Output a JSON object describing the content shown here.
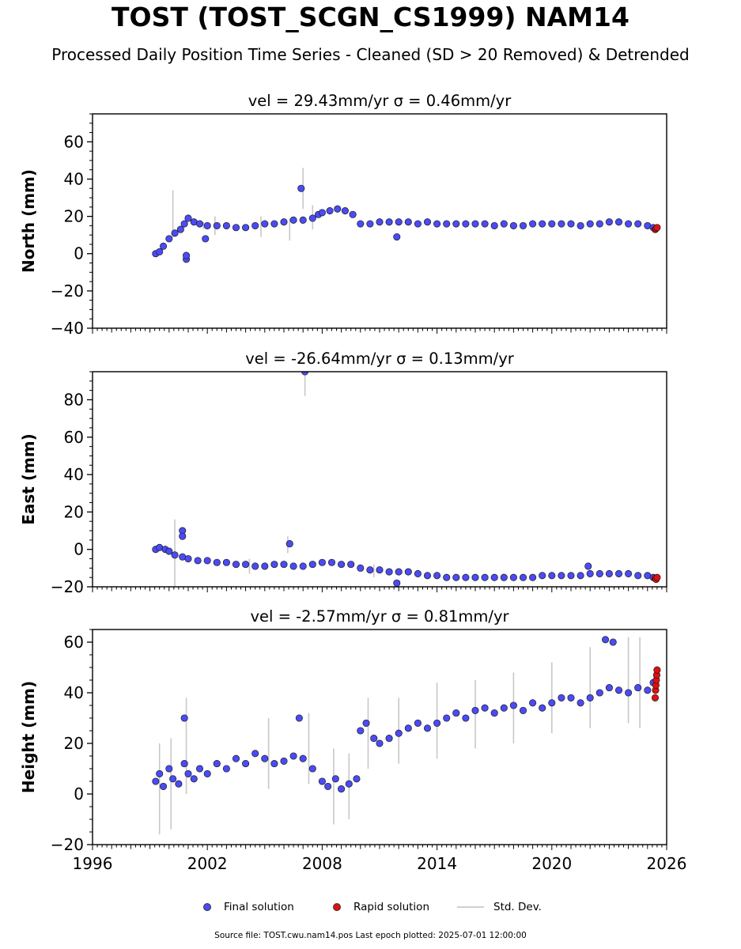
{
  "title": "TOST (TOST_SCGN_CS1999) NAM14",
  "subtitle": "Processed Daily Position Time Series - Cleaned (SD > 20 Removed) & Detrended",
  "legend": {
    "final": "Final solution",
    "rapid": "Rapid solution",
    "std": "Std. Dev."
  },
  "footer": "Source file: TOST.cwu.nam14.pos  Last epoch plotted: 2025-07-01 12:00:00",
  "colors": {
    "final": "#4b4bf5",
    "rapid": "#e01010",
    "std": "#c8c8c8",
    "edge": "#1a1a1a"
  },
  "chart_data": [
    {
      "type": "scatter",
      "panel_title": "vel = 29.43mm/yr   σ = 0.46mm/yr",
      "ylabel": "North (mm)",
      "xlim": [
        1996,
        2026
      ],
      "ylim": [
        -40,
        75
      ],
      "yticks": [
        -40,
        -20,
        0,
        20,
        40,
        60
      ],
      "ytick_labels": [
        "−40",
        "−20",
        "0",
        "20",
        "40",
        "60"
      ],
      "show_x_labels": false,
      "series": [
        {
          "name": "Final solution",
          "x": [
            1999.3,
            1999.5,
            1999.7,
            2000.0,
            2000.3,
            2000.6,
            2000.8,
            2001.0,
            2001.3,
            2001.6,
            2002.0,
            2002.5,
            2003.0,
            2003.5,
            2004.0,
            2004.5,
            2005.0,
            2005.5,
            2006.0,
            2006.5,
            2007.0,
            2007.5,
            2007.8,
            2008.0,
            2008.4,
            2008.8,
            2009.2,
            2009.6,
            2010.0,
            2010.5,
            2011.0,
            2011.5,
            2012.0,
            2012.5,
            2013.0,
            2013.5,
            2014.0,
            2014.5,
            2015.0,
            2015.5,
            2016.0,
            2016.5,
            2017.0,
            2017.5,
            2018.0,
            2018.5,
            2019.0,
            2019.5,
            2020.0,
            2020.5,
            2021.0,
            2021.5,
            2022.0,
            2022.5,
            2023.0,
            2023.5,
            2024.0,
            2024.5,
            2025.0,
            2025.3,
            2000.9,
            2000.9,
            2001.9,
            2006.9,
            2011.9
          ],
          "y": [
            0,
            1,
            4,
            8,
            11,
            13,
            16,
            19,
            17,
            16,
            15,
            15,
            15,
            14,
            14,
            15,
            16,
            16,
            17,
            18,
            18,
            19,
            21,
            22,
            23,
            24,
            23,
            21,
            16,
            16,
            17,
            17,
            17,
            17,
            16,
            17,
            16,
            16,
            16,
            16,
            16,
            16,
            15,
            16,
            15,
            15,
            16,
            16,
            16,
            16,
            16,
            15,
            16,
            16,
            17,
            17,
            16,
            16,
            15,
            14,
            -3,
            -1,
            8,
            35,
            9
          ]
        },
        {
          "name": "Rapid solution",
          "x": [
            2025.4,
            2025.45,
            2025.5
          ],
          "y": [
            13,
            13.5,
            14
          ]
        }
      ],
      "std_dev": {
        "x": [
          2000.2,
          2001.8,
          2002.4,
          2004.8,
          2006.3,
          2007.0,
          2007.5
        ],
        "upper": [
          34,
          17,
          20,
          20,
          19,
          46,
          26
        ],
        "lower": [
          9,
          13,
          10,
          9,
          7,
          24,
          13
        ]
      }
    },
    {
      "type": "scatter",
      "panel_title": "vel = -26.64mm/yr   σ = 0.13mm/yr",
      "ylabel": "East (mm)",
      "xlim": [
        1996,
        2026
      ],
      "ylim": [
        -20,
        95
      ],
      "yticks": [
        -20,
        0,
        20,
        40,
        60,
        80
      ],
      "ytick_labels": [
        "−20",
        "0",
        "20",
        "40",
        "60",
        "80"
      ],
      "show_x_labels": false,
      "series": [
        {
          "name": "Final solution",
          "x": [
            1999.3,
            1999.5,
            1999.8,
            2000.0,
            2000.3,
            2000.7,
            2001.0,
            2001.5,
            2002.0,
            2002.5,
            2003.0,
            2003.5,
            2004.0,
            2004.5,
            2005.0,
            2005.5,
            2006.0,
            2006.5,
            2007.0,
            2007.5,
            2008.0,
            2008.5,
            2009.0,
            2009.5,
            2010.0,
            2010.5,
            2011.0,
            2011.5,
            2012.0,
            2012.5,
            2013.0,
            2013.5,
            2014.0,
            2014.5,
            2015.0,
            2015.5,
            2016.0,
            2016.5,
            2017.0,
            2017.5,
            2018.0,
            2018.5,
            2019.0,
            2019.5,
            2020.0,
            2020.5,
            2021.0,
            2021.5,
            2022.0,
            2022.5,
            2023.0,
            2023.5,
            2024.0,
            2024.5,
            2025.0,
            2025.3,
            2000.7,
            2000.7,
            2006.3,
            2007.1,
            2011.9,
            2021.9
          ],
          "y": [
            0,
            1,
            0,
            -1,
            -3,
            -4,
            -5,
            -6,
            -6,
            -7,
            -7,
            -8,
            -8,
            -9,
            -9,
            -8,
            -8,
            -9,
            -9,
            -8,
            -7,
            -7,
            -8,
            -8,
            -10,
            -11,
            -11,
            -12,
            -12,
            -12,
            -13,
            -14,
            -14,
            -15,
            -15,
            -15,
            -15,
            -15,
            -15,
            -15,
            -15,
            -15,
            -15,
            -14,
            -14,
            -14,
            -14,
            -14,
            -13,
            -13,
            -13,
            -13,
            -13,
            -14,
            -14,
            -15,
            10,
            7,
            3,
            95,
            -18,
            -9
          ]
        },
        {
          "name": "Rapid solution",
          "x": [
            2025.4,
            2025.45,
            2025.5
          ],
          "y": [
            -15.5,
            -16,
            -15
          ]
        }
      ],
      "std_dev": {
        "x": [
          2000.3,
          2006.2,
          2007.1,
          2004.2,
          2010.7
        ],
        "upper": [
          16,
          7,
          96,
          -5,
          -8
        ],
        "lower": [
          -20,
          -2,
          82,
          -13,
          -15
        ]
      }
    },
    {
      "type": "scatter",
      "panel_title": "vel = -2.57mm/yr   σ = 0.81mm/yr",
      "ylabel": "Height (mm)",
      "xlim": [
        1996,
        2026
      ],
      "ylim": [
        -20,
        65
      ],
      "yticks": [
        -20,
        0,
        20,
        40,
        60
      ],
      "ytick_labels": [
        "−20",
        "0",
        "20",
        "40",
        "60"
      ],
      "show_x_labels": true,
      "xticks": [
        1996,
        2002,
        2008,
        2014,
        2020,
        2026
      ],
      "xtick_labels": [
        "1996",
        "2002",
        "2008",
        "2014",
        "2020",
        "2026"
      ],
      "series": [
        {
          "name": "Final solution",
          "x": [
            1999.3,
            1999.5,
            1999.7,
            2000.0,
            2000.2,
            2000.5,
            2000.8,
            2001.0,
            2001.3,
            2001.6,
            2002.0,
            2002.5,
            2003.0,
            2003.5,
            2004.0,
            2004.5,
            2005.0,
            2005.5,
            2006.0,
            2006.5,
            2007.0,
            2007.5,
            2008.0,
            2008.3,
            2008.7,
            2009.0,
            2009.4,
            2009.8,
            2010.0,
            2010.3,
            2010.7,
            2011.0,
            2011.5,
            2012.0,
            2012.5,
            2013.0,
            2013.5,
            2014.0,
            2014.5,
            2015.0,
            2015.5,
            2016.0,
            2016.5,
            2017.0,
            2017.5,
            2018.0,
            2018.5,
            2019.0,
            2019.5,
            2020.0,
            2020.5,
            2021.0,
            2021.5,
            2022.0,
            2022.5,
            2023.0,
            2023.5,
            2024.0,
            2024.5,
            2025.0,
            2025.3,
            2000.8,
            2006.8,
            2022.8,
            2023.2
          ],
          "y": [
            5,
            8,
            3,
            10,
            6,
            4,
            12,
            8,
            6,
            10,
            8,
            12,
            10,
            14,
            12,
            16,
            14,
            12,
            13,
            15,
            14,
            10,
            5,
            3,
            6,
            2,
            4,
            6,
            25,
            28,
            22,
            20,
            22,
            24,
            26,
            28,
            26,
            28,
            30,
            32,
            30,
            33,
            34,
            32,
            34,
            35,
            33,
            36,
            34,
            36,
            38,
            38,
            36,
            38,
            40,
            42,
            41,
            40,
            42,
            41,
            44,
            30,
            30,
            61,
            60
          ]
        },
        {
          "name": "Rapid solution",
          "x": [
            2025.4,
            2025.42,
            2025.44,
            2025.46,
            2025.48,
            2025.5
          ],
          "y": [
            38,
            41,
            43,
            45,
            47,
            49
          ]
        }
      ],
      "std_dev": {
        "x": [
          1999.5,
          2000.1,
          2000.9,
          2005.2,
          2007.3,
          2008.6,
          2009.4,
          2010.4,
          2012.0,
          2014.0,
          2016.0,
          2018.0,
          2020.0,
          2022.0,
          2024.0,
          2024.6
        ],
        "upper": [
          20,
          22,
          38,
          30,
          32,
          18,
          16,
          38,
          38,
          44,
          45,
          48,
          52,
          58,
          62,
          62
        ],
        "lower": [
          -16,
          -14,
          0,
          2,
          4,
          -12,
          -10,
          10,
          12,
          14,
          18,
          20,
          24,
          26,
          28,
          26
        ]
      }
    }
  ]
}
